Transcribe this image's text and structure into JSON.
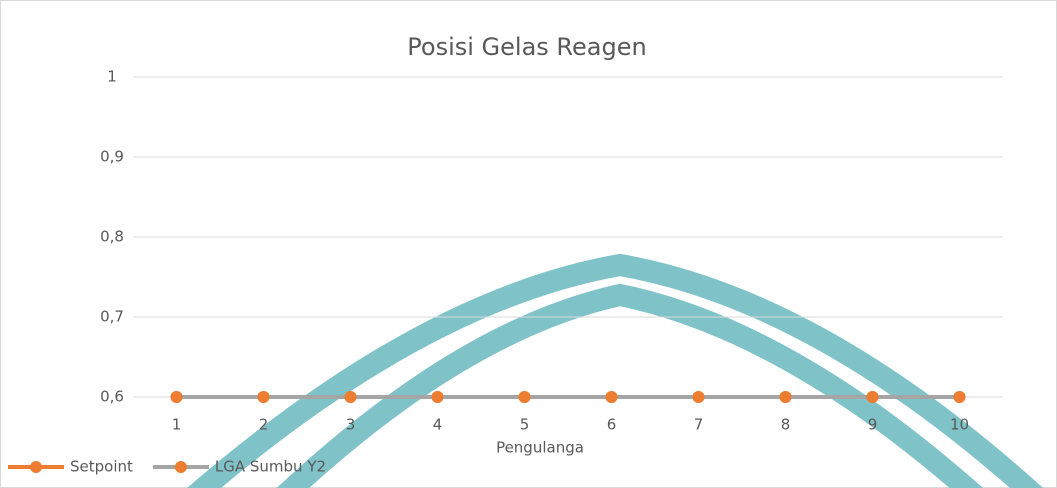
{
  "chart_data": {
    "type": "line",
    "title": "Posisi Gelas Reagen",
    "x_label": "Pengulanga",
    "categories": [
      "1",
      "2",
      "3",
      "4",
      "5",
      "6",
      "7",
      "8",
      "9",
      "10"
    ],
    "series": [
      {
        "name": "Setpoint",
        "color": "#ed7d31",
        "marker_color": "#ed7d31",
        "values": [
          0.6,
          0.6,
          0.6,
          0.6,
          0.6,
          0.6,
          0.6,
          0.6,
          0.6,
          0.6
        ]
      },
      {
        "name": "LGA Sumbu Y2",
        "color": "#a5a5a5",
        "marker_color": "#ed7d31",
        "values": [
          0.6,
          0.6,
          0.6,
          0.6,
          0.6,
          0.6,
          0.6,
          0.6,
          0.6,
          0.6
        ]
      }
    ],
    "ylim": [
      0.6,
      1
    ],
    "yticks": [
      1,
      {
        "value": 0.9,
        "label": "0,9"
      },
      {
        "value": 0.8,
        "label": "0,8"
      },
      {
        "value": 0.7,
        "label": "0,7"
      },
      {
        "value": 0.6,
        "label": "0,6"
      }
    ],
    "grid": true,
    "legend": "bottom-left"
  }
}
